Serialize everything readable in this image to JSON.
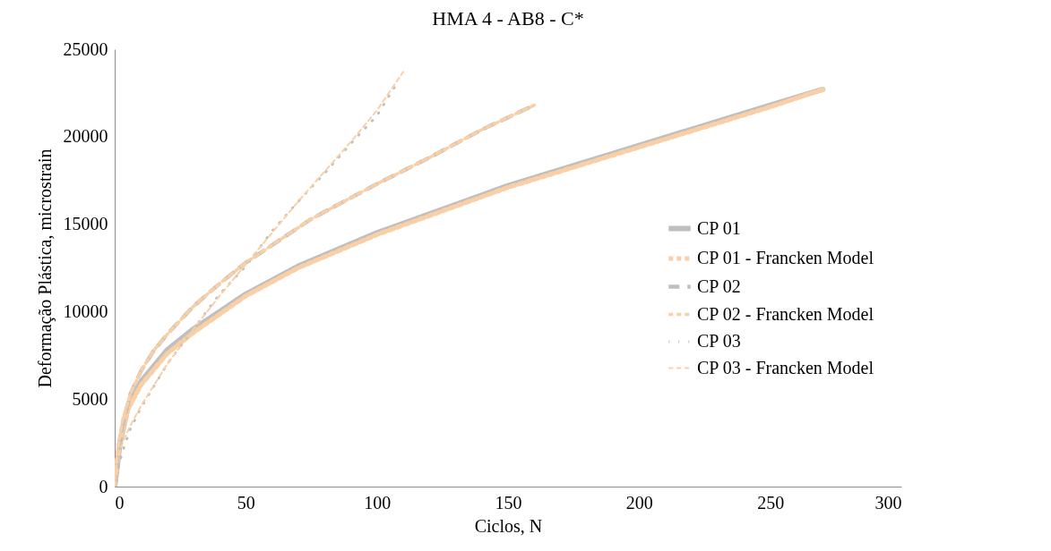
{
  "chart_data": {
    "type": "line",
    "title": "HMA 4 - AB8 - C*",
    "xlabel": "Ciclos, N",
    "ylabel": "Deformação Plástica, microstrain",
    "xlim": [
      0,
      300
    ],
    "xticks": [
      0,
      50,
      100,
      150,
      200,
      250,
      300
    ],
    "ylim": [
      0,
      25000
    ],
    "yticks": [
      0,
      5000,
      10000,
      15000,
      20000,
      25000
    ],
    "grid": false,
    "legend": "right",
    "marker": "none",
    "series": [
      {
        "name": "CP 01",
        "color": "#bfbfbf",
        "line_style": "solid",
        "x": [
          0,
          1,
          2,
          5,
          10,
          20,
          30,
          50,
          70,
          100,
          150,
          200,
          250,
          270
        ],
        "values": [
          0,
          1200,
          2500,
          4500,
          6000,
          7800,
          9000,
          11000,
          12600,
          14500,
          17200,
          19500,
          21800,
          22700
        ]
      },
      {
        "name": "CP 01 - Francken Model",
        "color": "#fbcfa5",
        "line_style": "dashed",
        "x": [
          0,
          1,
          2,
          5,
          10,
          20,
          30,
          50,
          70,
          100,
          150,
          200,
          250,
          270
        ],
        "values": [
          0,
          1400,
          2600,
          4400,
          5800,
          7600,
          8800,
          10900,
          12500,
          14400,
          17100,
          19400,
          21700,
          22700
        ]
      },
      {
        "name": "CP 02",
        "color": "#bfbfbf",
        "line_style": "dashed",
        "x": [
          0,
          1,
          3,
          6,
          10,
          15,
          20,
          30,
          40,
          50,
          60,
          75,
          100,
          120,
          140,
          160
        ],
        "values": [
          0,
          1500,
          3500,
          5300,
          6600,
          7800,
          8700,
          10300,
          11600,
          12800,
          13800,
          15300,
          17300,
          18800,
          20400,
          21800
        ]
      },
      {
        "name": "CP 02 - Francken Model",
        "color": "#fbcfa5",
        "line_style": "dashed",
        "x": [
          0,
          1,
          3,
          6,
          10,
          15,
          20,
          30,
          40,
          50,
          60,
          75,
          100,
          120,
          140,
          160
        ],
        "values": [
          0,
          2000,
          3800,
          5300,
          6600,
          7800,
          8700,
          10300,
          11600,
          12800,
          13800,
          15300,
          17300,
          18800,
          20400,
          21800
        ]
      },
      {
        "name": "CP 03",
        "color": "#bfbfbf",
        "line_style": "dotted",
        "x": [
          0,
          1,
          3,
          6,
          10,
          20,
          30,
          40,
          50,
          60,
          70,
          80,
          90,
          100,
          107
        ],
        "values": [
          0,
          900,
          2000,
          3300,
          4500,
          7000,
          9000,
          11000,
          12600,
          14600,
          16300,
          17900,
          19600,
          21200,
          22900
        ]
      },
      {
        "name": "CP 03 - Francken Model",
        "color": "#fbcfa5",
        "line_style": "dashed",
        "x": [
          0,
          1,
          3,
          6,
          10,
          20,
          30,
          40,
          50,
          60,
          70,
          80,
          90,
          100,
          110
        ],
        "values": [
          0,
          1500,
          2500,
          3500,
          4600,
          7000,
          9000,
          10900,
          12700,
          14500,
          16300,
          18000,
          19700,
          21500,
          23700
        ]
      }
    ]
  }
}
